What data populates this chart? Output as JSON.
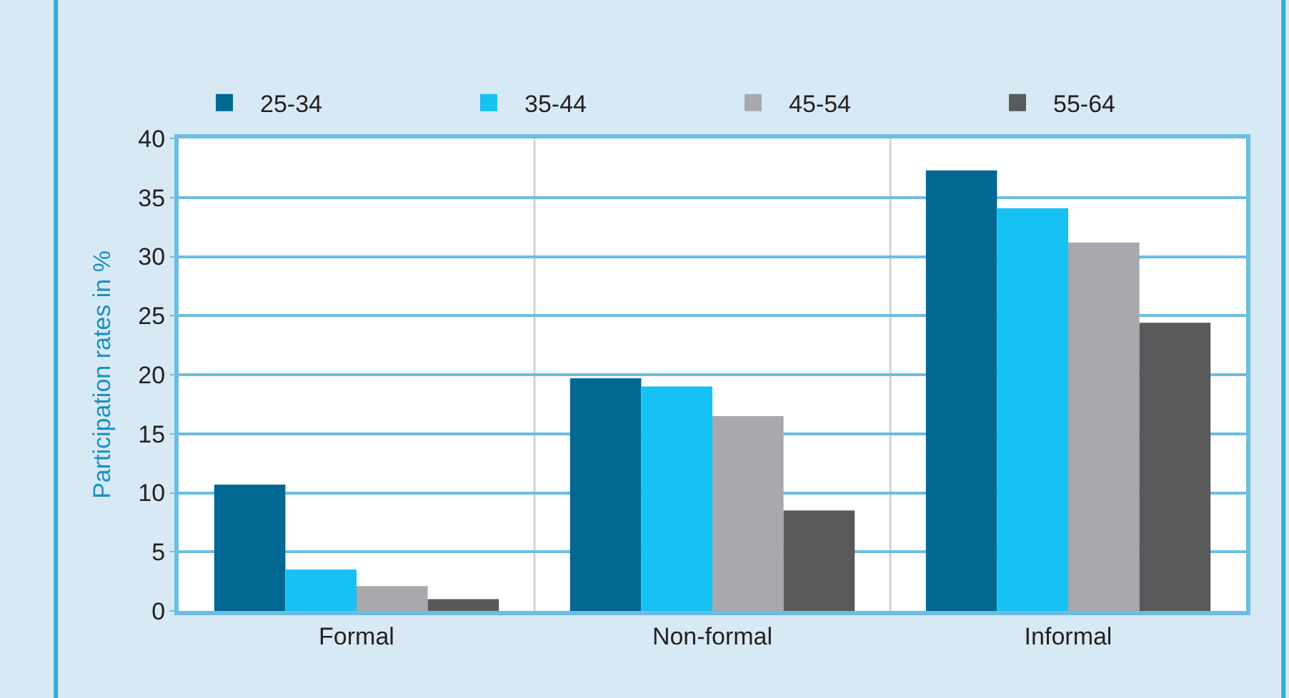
{
  "chart_data": {
    "type": "bar",
    "ylabel": "Participation rates in %",
    "categories": [
      "Formal",
      "Non-formal",
      "Informal"
    ],
    "series": [
      {
        "name": "25-34",
        "color": "#006892",
        "values": [
          10.7,
          19.7,
          37.3
        ]
      },
      {
        "name": "35-44",
        "color": "#16c1f3",
        "values": [
          3.5,
          19.0,
          34.1
        ]
      },
      {
        "name": "45-54",
        "color": "#a8a9ac",
        "values": [
          2.1,
          16.5,
          31.2
        ]
      },
      {
        "name": "55-64",
        "color": "#58595b",
        "values": [
          1.0,
          8.5,
          24.4
        ]
      }
    ],
    "ylim": [
      0,
      40
    ],
    "yticks": [
      0,
      5,
      10,
      15,
      20,
      25,
      30,
      35,
      40
    ],
    "grid": true,
    "legend": "top right"
  }
}
